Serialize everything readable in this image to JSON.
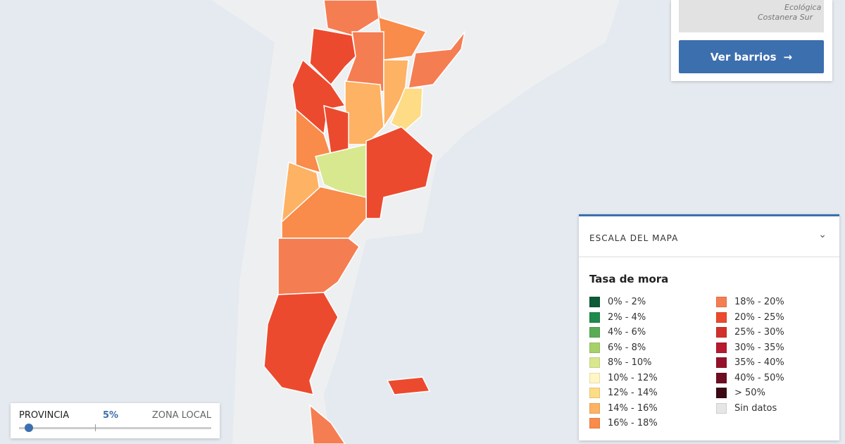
{
  "map": {
    "labels": [
      "Ecológica",
      "Costanera Sur"
    ]
  },
  "card": {
    "button": "Ver barrios"
  },
  "legend": {
    "header": "ESCALA DEL MAPA",
    "title": "Tasa de mora",
    "items": [
      {
        "label": "0% - 2%",
        "color": "#0b5a38"
      },
      {
        "label": "2% - 4%",
        "color": "#1f8a4c"
      },
      {
        "label": "4% - 6%",
        "color": "#5aac55"
      },
      {
        "label": "6% - 8%",
        "color": "#a6d16a"
      },
      {
        "label": "8% - 10%",
        "color": "#d8e88e"
      },
      {
        "label": "10% - 12%",
        "color": "#fff6c4"
      },
      {
        "label": "12% - 14%",
        "color": "#fddc85"
      },
      {
        "label": "14% - 16%",
        "color": "#fdb264"
      },
      {
        "label": "16% - 18%",
        "color": "#f98b4b"
      },
      {
        "label": "18% - 20%",
        "color": "#f57d52"
      },
      {
        "label": "20% - 25%",
        "color": "#ec4a2e"
      },
      {
        "label": "25% - 30%",
        "color": "#d2302a"
      },
      {
        "label": "30% - 35%",
        "color": "#b7192f"
      },
      {
        "label": "35% - 40%",
        "color": "#95112a"
      },
      {
        "label": "40% - 50%",
        "color": "#6e0d22"
      },
      {
        "label": "> 50%",
        "color": "#3b0814"
      },
      {
        "label": "Sin datos",
        "color": "#e6e6e6"
      }
    ]
  },
  "slider": {
    "left": "PROVINCIA",
    "value": "5%",
    "right": "ZONA LOCAL"
  }
}
